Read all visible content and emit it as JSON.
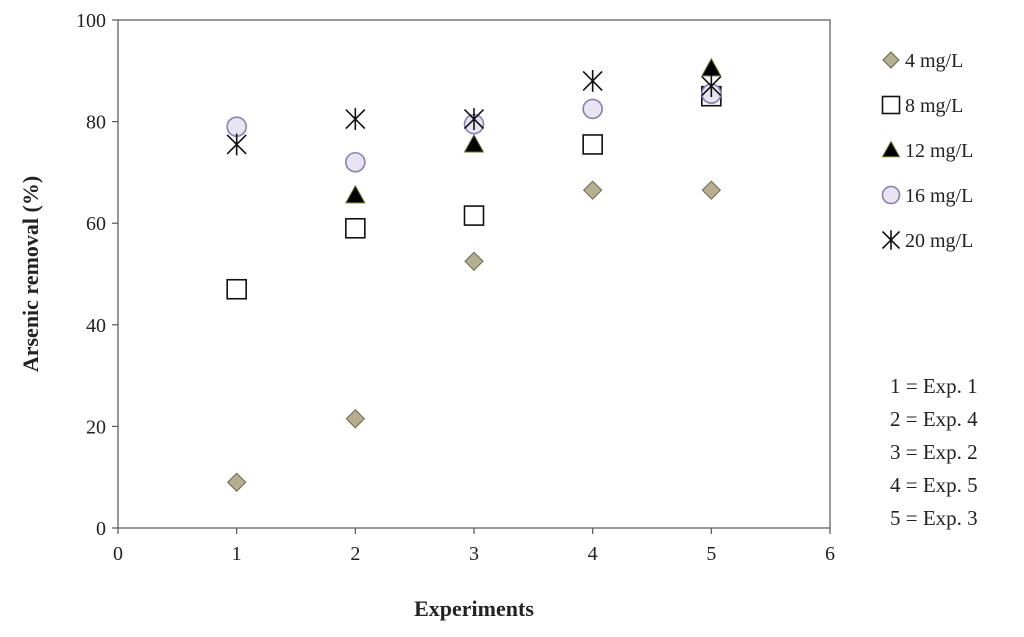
{
  "chart_data": {
    "type": "scatter",
    "xlabel": "Experiments",
    "ylabel": "Arsenic removal (%)",
    "xlim": [
      0,
      6
    ],
    "ylim": [
      0,
      100
    ],
    "xticks": [
      0,
      1,
      2,
      3,
      4,
      5,
      6
    ],
    "yticks": [
      0,
      20,
      40,
      60,
      80,
      100
    ],
    "grid": false,
    "legend_position": "right",
    "series": [
      {
        "name": "4 mg/L",
        "marker": "diamond",
        "color": "#b5ae8f",
        "x": [
          1,
          2,
          3,
          4,
          5
        ],
        "y": [
          9,
          21.5,
          52.5,
          66.5,
          66.5
        ]
      },
      {
        "name": "8 mg/L",
        "marker": "square",
        "color": "#ffffff",
        "x": [
          1,
          2,
          3,
          4,
          5
        ],
        "y": [
          47,
          59,
          61.5,
          75.5,
          85
        ]
      },
      {
        "name": "12 mg/L",
        "marker": "triangle",
        "color": "#000000",
        "x": [
          2,
          3,
          5
        ],
        "y": [
          65.5,
          75.5,
          90.5
        ]
      },
      {
        "name": "16 mg/L",
        "marker": "circle",
        "color": "#e8e4f2",
        "x": [
          1,
          2,
          3,
          4,
          5
        ],
        "y": [
          79,
          72,
          79.5,
          82.5,
          85.5
        ]
      },
      {
        "name": "20 mg/L",
        "marker": "star",
        "color": "#000000",
        "x": [
          1,
          2,
          3,
          4,
          5
        ],
        "y": [
          75.5,
          80.5,
          80.5,
          88,
          87
        ]
      }
    ],
    "annotations": [
      "1 = Exp. 1",
      "2 = Exp. 4",
      "3 = Exp. 2",
      "4 = Exp. 5",
      "5 = Exp. 3"
    ]
  }
}
